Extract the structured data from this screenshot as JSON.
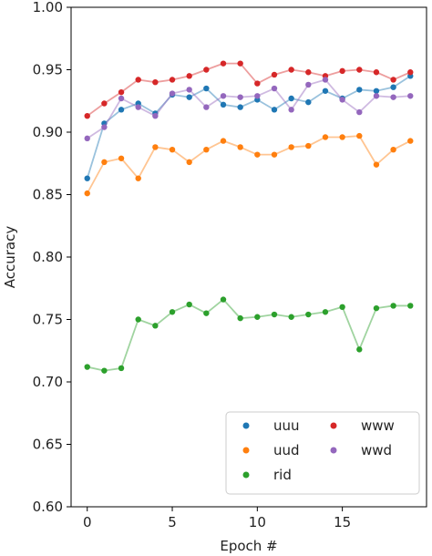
{
  "chart_data": {
    "type": "line",
    "xlabel": "Epoch #",
    "ylabel": "Accuracy",
    "xlim": [
      -0.95,
      19.95
    ],
    "ylim": [
      0.6,
      1.0
    ],
    "xticks": [
      0,
      5,
      10,
      15
    ],
    "yticks": [
      0.6,
      0.65,
      0.7,
      0.75,
      0.8,
      0.85,
      0.9,
      0.95,
      1.0
    ],
    "xtick_labels": [
      "0",
      "5",
      "10",
      "15"
    ],
    "ytick_labels": [
      "0.60",
      "0.65",
      "0.70",
      "0.75",
      "0.80",
      "0.85",
      "0.90",
      "0.95",
      "1.00"
    ],
    "grid": false,
    "legend_position": "lower-right",
    "x": [
      0,
      1,
      2,
      3,
      4,
      5,
      6,
      7,
      8,
      9,
      10,
      11,
      12,
      13,
      14,
      15,
      16,
      17,
      18,
      19
    ],
    "series": [
      {
        "name": "uuu",
        "color": "#1f77b4",
        "values": [
          0.863,
          0.907,
          0.918,
          0.923,
          0.915,
          0.93,
          0.928,
          0.935,
          0.922,
          0.92,
          0.926,
          0.918,
          0.927,
          0.924,
          0.933,
          0.927,
          0.934,
          0.933,
          0.936,
          0.945
        ]
      },
      {
        "name": "uud",
        "color": "#ff7f0e",
        "values": [
          0.851,
          0.876,
          0.879,
          0.863,
          0.888,
          0.886,
          0.876,
          0.886,
          0.893,
          0.888,
          0.882,
          0.882,
          0.888,
          0.889,
          0.896,
          0.896,
          0.897,
          0.874,
          0.886,
          0.893
        ]
      },
      {
        "name": "rid",
        "color": "#2ca02c",
        "values": [
          0.712,
          0.709,
          0.711,
          0.75,
          0.745,
          0.756,
          0.762,
          0.755,
          0.766,
          0.751,
          0.752,
          0.754,
          0.752,
          0.754,
          0.756,
          0.76,
          0.726,
          0.759,
          0.761,
          0.761
        ]
      },
      {
        "name": "www",
        "color": "#d62728",
        "values": [
          0.913,
          0.923,
          0.932,
          0.942,
          0.94,
          0.942,
          0.945,
          0.95,
          0.955,
          0.955,
          0.939,
          0.946,
          0.95,
          0.948,
          0.945,
          0.949,
          0.95,
          0.948,
          0.942,
          0.948
        ]
      },
      {
        "name": "wwd",
        "color": "#9467bd",
        "values": [
          0.895,
          0.904,
          0.927,
          0.92,
          0.913,
          0.931,
          0.934,
          0.92,
          0.929,
          0.928,
          0.929,
          0.935,
          0.918,
          0.938,
          0.942,
          0.926,
          0.916,
          0.929,
          0.928,
          0.929
        ]
      }
    ]
  }
}
